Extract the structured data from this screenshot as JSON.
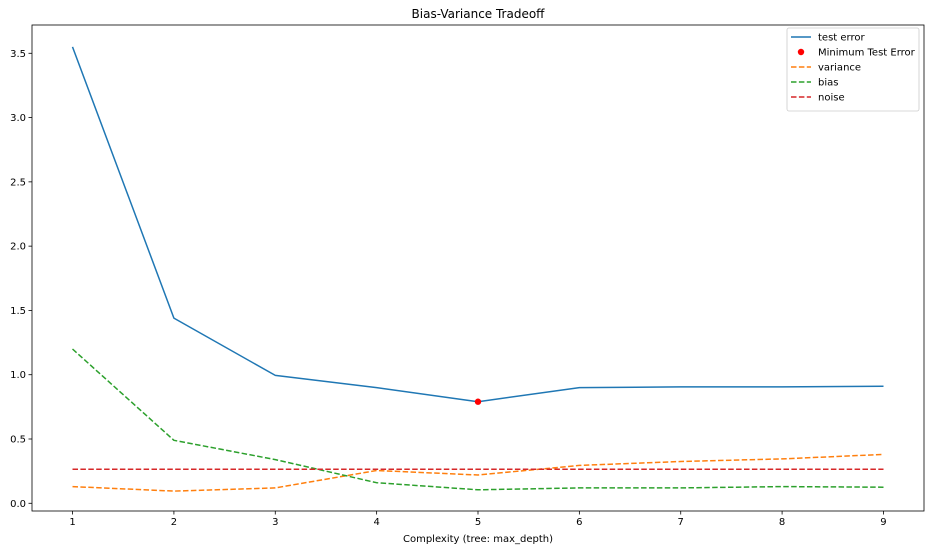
{
  "chart_data": {
    "type": "line",
    "title": "Bias-Variance Tradeoff",
    "xlabel": "Complexity (tree: max_depth)",
    "ylabel": "",
    "x": [
      1,
      2,
      3,
      4,
      5,
      6,
      7,
      8,
      9
    ],
    "xlim": [
      0.6,
      9.4
    ],
    "ylim": [
      -0.06,
      3.72
    ],
    "xticks": [
      "1",
      "2",
      "3",
      "4",
      "5",
      "6",
      "7",
      "8",
      "9"
    ],
    "yticks": [
      "0.0",
      "0.5",
      "1.0",
      "1.5",
      "2.0",
      "2.5",
      "3.0",
      "3.5"
    ],
    "grid": false,
    "legend_position": "top-right",
    "series": [
      {
        "name": "test error",
        "style": "solid",
        "color": "#1f77b4",
        "values": [
          3.55,
          1.44,
          0.995,
          0.9,
          0.79,
          0.9,
          0.905,
          0.905,
          0.91
        ]
      },
      {
        "name": "variance",
        "style": "dashed",
        "color": "#ff7f0e",
        "values": [
          0.13,
          0.095,
          0.12,
          0.255,
          0.22,
          0.295,
          0.325,
          0.345,
          0.38
        ]
      },
      {
        "name": "bias",
        "style": "dashed",
        "color": "#2ca02c",
        "values": [
          1.2,
          0.49,
          0.34,
          0.16,
          0.105,
          0.12,
          0.12,
          0.13,
          0.125
        ]
      },
      {
        "name": "noise",
        "style": "dashed",
        "color": "#d62728",
        "values": [
          0.265,
          0.265,
          0.265,
          0.265,
          0.265,
          0.265,
          0.265,
          0.265,
          0.265
        ]
      }
    ],
    "markers": [
      {
        "name": "Minimum Test Error",
        "color": "#ff0000",
        "x": 5,
        "y": 0.79
      }
    ],
    "legend": [
      {
        "label": "test error",
        "kind": "line",
        "style": "solid",
        "color": "#1f77b4"
      },
      {
        "label": "Minimum Test Error",
        "kind": "point",
        "style": "none",
        "color": "#ff0000"
      },
      {
        "label": "variance",
        "kind": "line",
        "style": "dashed",
        "color": "#ff7f0e"
      },
      {
        "label": "bias",
        "kind": "line",
        "style": "dashed",
        "color": "#2ca02c"
      },
      {
        "label": "noise",
        "kind": "line",
        "style": "dashed",
        "color": "#d62728"
      }
    ]
  }
}
